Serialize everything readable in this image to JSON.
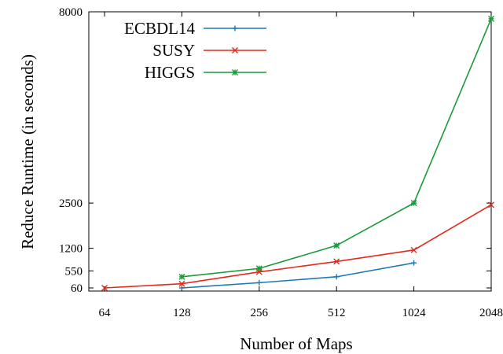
{
  "chart_data": {
    "type": "line",
    "title": "",
    "xlabel": "Number of Maps",
    "ylabel": "Reduce Runtime (in seconds)",
    "x": [
      64,
      128,
      256,
      512,
      1024,
      2048
    ],
    "x_tick_labels": [
      "64",
      "128",
      "256",
      "512",
      "1024",
      "2048"
    ],
    "x_scale": "log2",
    "xlim": [
      64,
      2048
    ],
    "y_ticks": [
      60,
      550,
      1200,
      2500,
      8000
    ],
    "y_tick_labels": [
      "60",
      "550",
      "1200",
      "2500",
      "8000"
    ],
    "ylim": [
      60,
      8000
    ],
    "grid": false,
    "legend_position": "top-left",
    "series": [
      {
        "name": "ECBDL14",
        "color": "#1f78b4",
        "marker": "plus",
        "x": [
          128,
          256,
          512,
          1024
        ],
        "y": [
          60,
          210,
          380,
          780
        ]
      },
      {
        "name": "SUSY",
        "color": "#e3291b",
        "marker": "cross",
        "x": [
          64,
          128,
          256,
          512,
          1024,
          2048
        ],
        "y": [
          60,
          180,
          520,
          820,
          1150,
          2450
        ]
      },
      {
        "name": "HIGGS",
        "color": "#1a9a3a",
        "marker": "star",
        "x": [
          128,
          256,
          512,
          1024,
          2048
        ],
        "y": [
          380,
          620,
          1280,
          2500,
          7800
        ]
      }
    ]
  }
}
